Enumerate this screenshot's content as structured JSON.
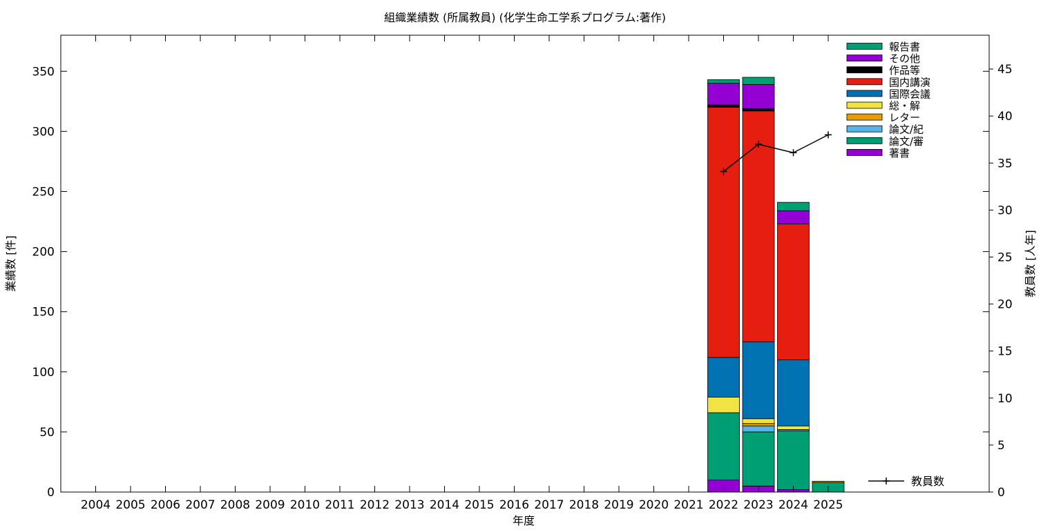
{
  "chart_data": {
    "type": "bar",
    "stacked": true,
    "title": "組織業績数 (所属教員) (化学生命工学系プログラム:著作)",
    "xlabel": "年度",
    "ylabel": "業績数 [件]",
    "y2label": "教員数 [人年]",
    "ylim": [
      0,
      380
    ],
    "y2lim": [
      0,
      48.6
    ],
    "yticks": [
      0,
      50,
      100,
      150,
      200,
      250,
      300,
      350
    ],
    "y2ticks": [
      0,
      5,
      10,
      15,
      20,
      25,
      30,
      35,
      40,
      45
    ],
    "categories": [
      "2004",
      "2005",
      "2006",
      "2007",
      "2008",
      "2009",
      "2010",
      "2011",
      "2012",
      "2013",
      "2014",
      "2015",
      "2016",
      "2017",
      "2018",
      "2019",
      "2020",
      "2021",
      "2022",
      "2023",
      "2024",
      "2025"
    ],
    "legend_position": "top-right",
    "series": [
      {
        "name": "著書",
        "color": "#9400d3",
        "values": [
          0,
          0,
          0,
          0,
          0,
          0,
          0,
          0,
          0,
          0,
          0,
          0,
          0,
          0,
          0,
          0,
          0,
          0,
          10,
          5,
          2,
          0
        ]
      },
      {
        "name": "論文/審",
        "color": "#009e73",
        "values": [
          0,
          0,
          0,
          0,
          0,
          0,
          0,
          0,
          0,
          0,
          0,
          0,
          0,
          0,
          0,
          0,
          0,
          0,
          56,
          45,
          49,
          8
        ]
      },
      {
        "name": "論文/紀",
        "color": "#56b4e9",
        "values": [
          0,
          0,
          0,
          0,
          0,
          0,
          0,
          0,
          0,
          0,
          0,
          0,
          0,
          0,
          0,
          0,
          0,
          0,
          0,
          5,
          0,
          0
        ]
      },
      {
        "name": "レター",
        "color": "#e69f00",
        "values": [
          0,
          0,
          0,
          0,
          0,
          0,
          0,
          0,
          0,
          0,
          0,
          0,
          0,
          0,
          0,
          0,
          0,
          0,
          0,
          2,
          1,
          1
        ]
      },
      {
        "name": "総・解",
        "color": "#f0e442",
        "values": [
          0,
          0,
          0,
          0,
          0,
          0,
          0,
          0,
          0,
          0,
          0,
          0,
          0,
          0,
          0,
          0,
          0,
          0,
          13,
          4,
          3,
          0
        ]
      },
      {
        "name": "国際会議",
        "color": "#0072b2",
        "values": [
          0,
          0,
          0,
          0,
          0,
          0,
          0,
          0,
          0,
          0,
          0,
          0,
          0,
          0,
          0,
          0,
          0,
          0,
          33,
          64,
          55,
          0
        ]
      },
      {
        "name": "国内講演",
        "color": "#e51e10",
        "values": [
          0,
          0,
          0,
          0,
          0,
          0,
          0,
          0,
          0,
          0,
          0,
          0,
          0,
          0,
          0,
          0,
          0,
          0,
          208,
          192,
          113,
          0
        ]
      },
      {
        "name": "作品等",
        "color": "#000000",
        "values": [
          0,
          0,
          0,
          0,
          0,
          0,
          0,
          0,
          0,
          0,
          0,
          0,
          0,
          0,
          0,
          0,
          0,
          0,
          2,
          2,
          0,
          0
        ]
      },
      {
        "name": "その他",
        "color": "#9400d3",
        "values": [
          0,
          0,
          0,
          0,
          0,
          0,
          0,
          0,
          0,
          0,
          0,
          0,
          0,
          0,
          0,
          0,
          0,
          0,
          18,
          20,
          11,
          0
        ]
      },
      {
        "name": "報告書",
        "color": "#009e73",
        "values": [
          0,
          0,
          0,
          0,
          0,
          0,
          0,
          0,
          0,
          0,
          0,
          0,
          0,
          0,
          0,
          0,
          0,
          0,
          3,
          6,
          7,
          0
        ]
      }
    ],
    "line_series": {
      "name": "教員数",
      "axis": "y2",
      "color": "#000000",
      "points": [
        {
          "x": "2022",
          "y": 34.1
        },
        {
          "x": "2023",
          "y": 37.0
        },
        {
          "x": "2024",
          "y": 36.1
        },
        {
          "x": "2025",
          "y": 38.0
        }
      ]
    }
  }
}
